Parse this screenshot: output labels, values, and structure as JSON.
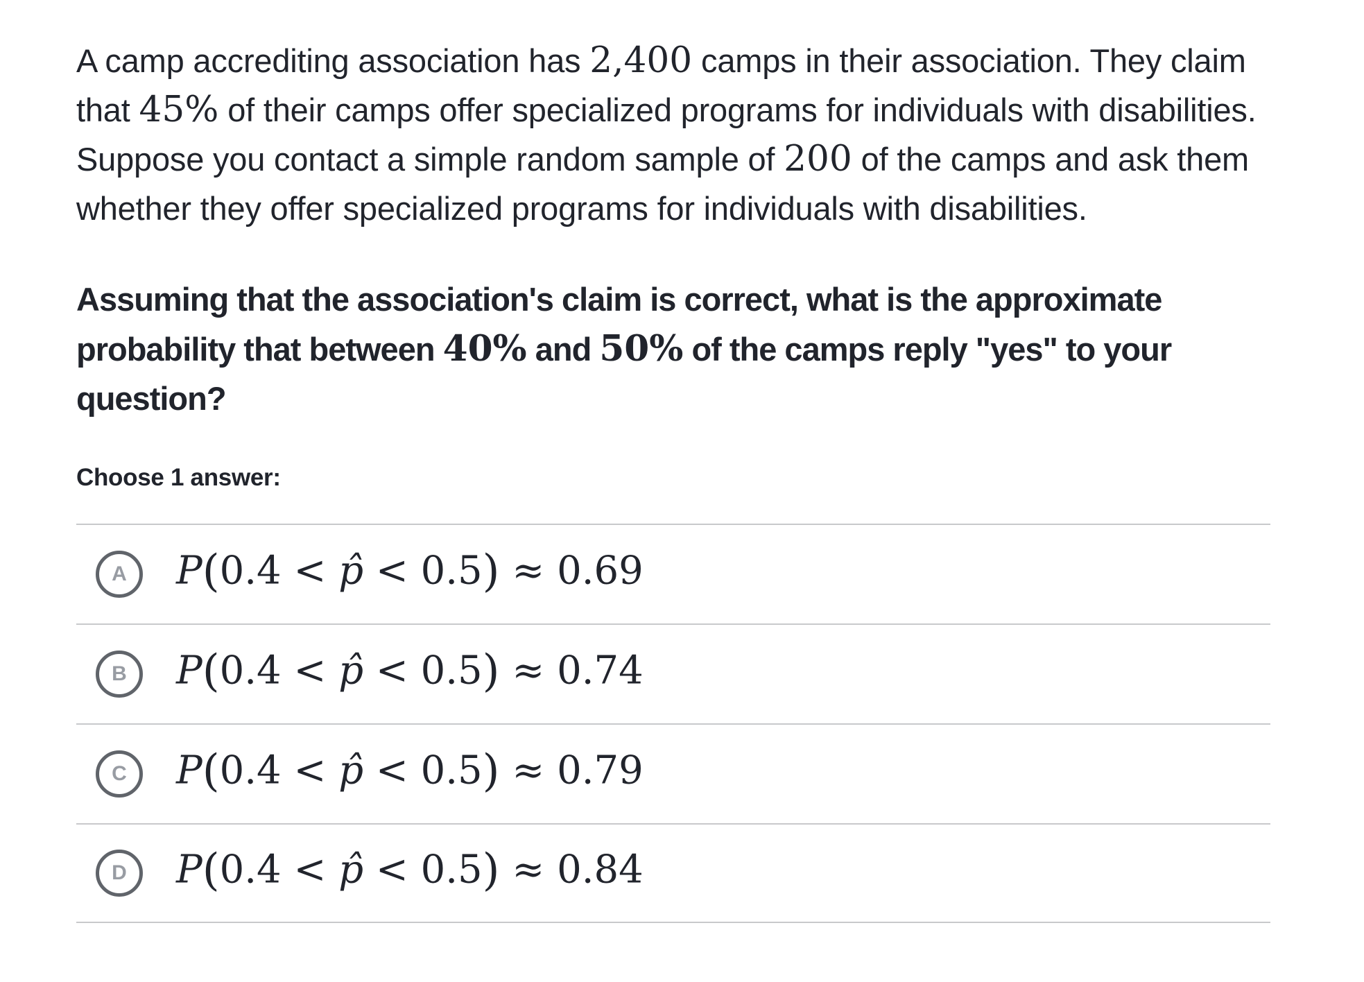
{
  "question": {
    "paragraph_segments": [
      {
        "t": "A camp accrediting association has ",
        "s": "sans"
      },
      {
        "t": "2,400",
        "s": "serif"
      },
      {
        "t": " camps in their association. They claim that ",
        "s": "sans"
      },
      {
        "t": "45%",
        "s": "serif"
      },
      {
        "t": " of their camps offer specialized programs for individuals with disabilities. Suppose you contact a simple random sample of ",
        "s": "sans"
      },
      {
        "t": "200",
        "s": "serif"
      },
      {
        "t": " of the camps and ask them whether they offer specialized programs for individuals with disabilities.",
        "s": "sans"
      }
    ],
    "prompt_segments": [
      {
        "t": "Assuming that the association's claim is correct, what is the approximate probability that between ",
        "s": "sans"
      },
      {
        "t": "40%",
        "s": "serif"
      },
      {
        "t": " and ",
        "s": "sans"
      },
      {
        "t": "50%",
        "s": "serif"
      },
      {
        "t": " of the camps reply \"yes\" to your question?",
        "s": "sans"
      }
    ]
  },
  "choose_label": "Choose 1 answer:",
  "formula": {
    "P": "P",
    "open": "(",
    "left": "0.4 < ",
    "phat": "p̂",
    "right": " < 0.5",
    "close": ")",
    "approx": " ≈ "
  },
  "options": [
    {
      "letter": "A",
      "value": "0.69"
    },
    {
      "letter": "B",
      "value": "0.74"
    },
    {
      "letter": "C",
      "value": "0.79"
    },
    {
      "letter": "D",
      "value": "0.84"
    }
  ],
  "colors": {
    "text": "#21242c",
    "divider": "#c8c9cb",
    "radio_ring": "#60646a",
    "radio_letter": "#989ca3",
    "background": "#ffffff"
  }
}
